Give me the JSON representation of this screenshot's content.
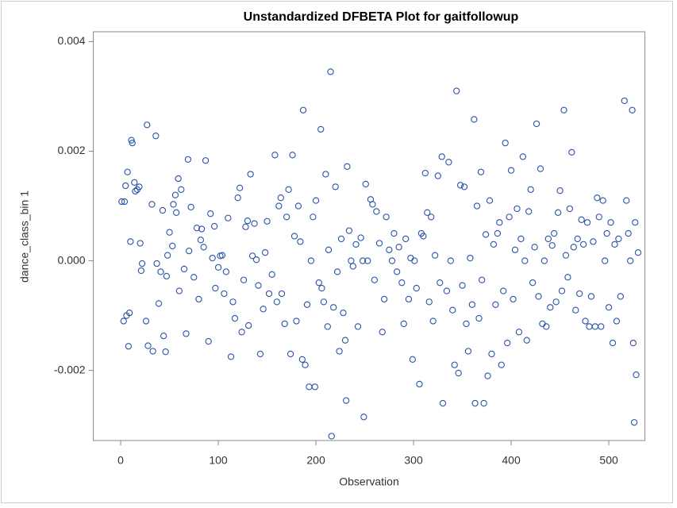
{
  "chart_data": {
    "type": "scatter",
    "title": "Unstandardized DFBETA Plot for gaitfollowup",
    "x_label": "Observation",
    "y_label": "dance_class_bin 1",
    "color": "#2a53a8",
    "xlim": [
      -28,
      537
    ],
    "ylim": [
      -0.00328,
      0.00418
    ],
    "xticks": [
      0,
      100,
      200,
      300,
      400,
      500
    ],
    "yticks": [
      {
        "value": -0.002,
        "label": "-0.002"
      },
      {
        "value": 0,
        "label": "0.000"
      },
      {
        "value": 0.002,
        "label": "0.002"
      },
      {
        "value": 0.004,
        "label": "0.004"
      }
    ],
    "x": [
      1,
      3,
      4,
      5,
      6,
      7,
      8,
      9,
      10,
      11,
      12,
      14,
      15,
      17,
      19,
      20,
      21,
      22,
      26,
      27,
      28,
      32,
      33,
      36,
      37,
      39,
      41,
      43,
      44,
      46,
      47,
      48,
      50,
      53,
      54,
      56,
      57,
      59,
      60,
      62,
      65,
      67,
      69,
      70,
      72,
      75,
      78,
      80,
      82,
      83,
      85,
      87,
      90,
      92,
      94,
      96,
      97,
      100,
      102,
      104,
      106,
      108,
      110,
      113,
      115,
      117,
      120,
      122,
      124,
      126,
      128,
      130,
      131,
      133,
      135,
      137,
      139,
      141,
      143,
      146,
      148,
      150,
      152,
      155,
      158,
      160,
      162,
      164,
      165,
      168,
      170,
      172,
      174,
      176,
      178,
      180,
      182,
      184,
      186,
      187,
      189,
      191,
      193,
      195,
      197,
      199,
      200,
      203,
      205,
      206,
      208,
      210,
      212,
      213,
      215,
      216,
      218,
      220,
      222,
      224,
      226,
      228,
      230,
      231,
      232,
      234,
      236,
      238,
      241,
      243,
      246,
      248,
      249,
      251,
      253,
      256,
      258,
      260,
      262,
      265,
      268,
      270,
      272,
      275,
      278,
      280,
      283,
      285,
      288,
      290,
      292,
      295,
      297,
      299,
      301,
      303,
      306,
      308,
      310,
      312,
      314,
      316,
      318,
      320,
      322,
      325,
      327,
      329,
      330,
      344,
      334,
      336,
      338,
      340,
      342,
      346,
      348,
      350,
      352,
      354,
      356,
      358,
      360,
      362,
      363,
      365,
      367,
      369,
      370,
      372,
      374,
      376,
      378,
      380,
      382,
      384,
      386,
      388,
      390,
      392,
      394,
      396,
      398,
      400,
      402,
      404,
      406,
      408,
      410,
      412,
      414,
      416,
      418,
      420,
      422,
      424,
      426,
      428,
      430,
      432,
      434,
      436,
      438,
      440,
      442,
      444,
      446,
      448,
      450,
      452,
      454,
      456,
      458,
      460,
      462,
      464,
      466,
      468,
      470,
      472,
      474,
      476,
      478,
      480,
      482,
      484,
      486,
      488,
      490,
      492,
      494,
      496,
      498,
      500,
      502,
      504,
      506,
      508,
      510,
      512,
      516,
      518,
      520,
      522,
      524,
      525,
      526,
      527,
      528,
      530
    ],
    "values": [
      0.00108,
      -0.0011,
      0.00108,
      0.00137,
      -0.001,
      0.00162,
      -0.00156,
      -0.00095,
      0.00035,
      0.0022,
      0.00215,
      0.00143,
      0.00127,
      0.0013,
      0.00135,
      0.00032,
      -0.00018,
      -5e-05,
      -0.0011,
      0.00248,
      -0.00155,
      0.00103,
      -0.00165,
      0.00228,
      -5e-05,
      -0.00078,
      -0.0002,
      0.00092,
      -0.00137,
      -0.00166,
      -0.00028,
      0.0001,
      0.00052,
      0.00027,
      0.00103,
      0.0012,
      0.00088,
      0.0015,
      -0.00055,
      0.0013,
      -0.00015,
      -0.00133,
      0.00185,
      0.00018,
      0.00098,
      -0.0003,
      0.0006,
      -0.0007,
      0.00038,
      0.00058,
      0.00025,
      0.00183,
      -0.00147,
      0.00086,
      5e-05,
      0.00063,
      -0.0005,
      -0.00012,
      9e-05,
      0.0001,
      -0.0006,
      -0.0002,
      0.00078,
      -0.00175,
      -0.00075,
      -0.00105,
      0.00115,
      0.00133,
      -0.0013,
      -0.00035,
      0.00062,
      0.00073,
      -0.00118,
      0.00158,
      9e-05,
      0.00068,
      2e-05,
      -0.00045,
      -0.0017,
      -0.00088,
      0.00015,
      0.00072,
      -0.0006,
      -0.00025,
      0.00193,
      -0.00075,
      0.001,
      0.00115,
      -0.0006,
      -0.00115,
      0.0008,
      0.0013,
      -0.0017,
      0.00193,
      0.00045,
      -0.0011,
      0.001,
      0.00035,
      -0.0018,
      0.00275,
      -0.0019,
      -0.0008,
      -0.0023,
      0,
      0.0008,
      -0.0023,
      0.0011,
      -0.0004,
      0.0024,
      -0.0005,
      -0.00075,
      0.00158,
      -0.0012,
      0.0002,
      0.00345,
      -0.0032,
      -0.00085,
      0.00135,
      -0.0002,
      -0.00165,
      0.0004,
      -0.00095,
      -0.00145,
      -0.00255,
      0.00172,
      0.00055,
      0,
      -0.0001,
      0.0003,
      -0.0012,
      0.00042,
      0,
      -0.00285,
      0.0014,
      0,
      0.00112,
      0.00103,
      -0.00035,
      0.0009,
      0.00032,
      -0.0013,
      -0.0007,
      0.0008,
      0.0002,
      0,
      0.0005,
      -0.0002,
      0.00025,
      -0.0004,
      -0.00115,
      0.0004,
      -0.0007,
      5e-05,
      -0.0018,
      0,
      -0.0005,
      -0.00225,
      0.0005,
      0.00045,
      0.0016,
      0.00088,
      -0.00075,
      0.0008,
      -0.0011,
      0.0001,
      0.00155,
      -0.0004,
      0.0019,
      -0.0026,
      0.0031,
      -0.00055,
      0.0018,
      0,
      -0.0009,
      -0.0019,
      -0.00205,
      0.00138,
      -0.00045,
      0.00135,
      -0.00115,
      -0.00165,
      5e-05,
      -0.0008,
      0.00258,
      -0.0026,
      0.001,
      -0.00105,
      0.00162,
      -0.00035,
      -0.0026,
      0.00048,
      -0.0021,
      0.0011,
      -0.0017,
      0.0003,
      -0.0008,
      0.0005,
      0.0007,
      -0.0019,
      -0.00055,
      0.00215,
      -0.0015,
      0.0008,
      0.00165,
      -0.0007,
      0.0002,
      0.00095,
      -0.0013,
      0.0004,
      0.0019,
      0,
      -0.00145,
      0.0009,
      0.0013,
      -0.0004,
      0.00025,
      0.0025,
      -0.00065,
      0.00168,
      -0.00115,
      0,
      -0.0012,
      0.0004,
      -0.00085,
      0.00028,
      0.0005,
      -0.00075,
      0.00088,
      0.00128,
      -0.00055,
      0.00275,
      0.0001,
      -0.0003,
      0.00095,
      0.00198,
      0.00025,
      -0.0009,
      0.0004,
      -0.0006,
      0.00075,
      0.0003,
      -0.0011,
      0.0007,
      -0.0012,
      -0.00065,
      0.00035,
      -0.0012,
      0.00115,
      0.0008,
      -0.0012,
      0.0011,
      0,
      0.0005,
      -0.00085,
      0.0007,
      -0.0015,
      0.0003,
      -0.0011,
      0.0004,
      -0.00065,
      0.00292,
      0.0011,
      0.0005,
      0,
      0.00275,
      -0.0015,
      -0.00295,
      0.0007,
      -0.00208,
      0.00015
    ]
  }
}
